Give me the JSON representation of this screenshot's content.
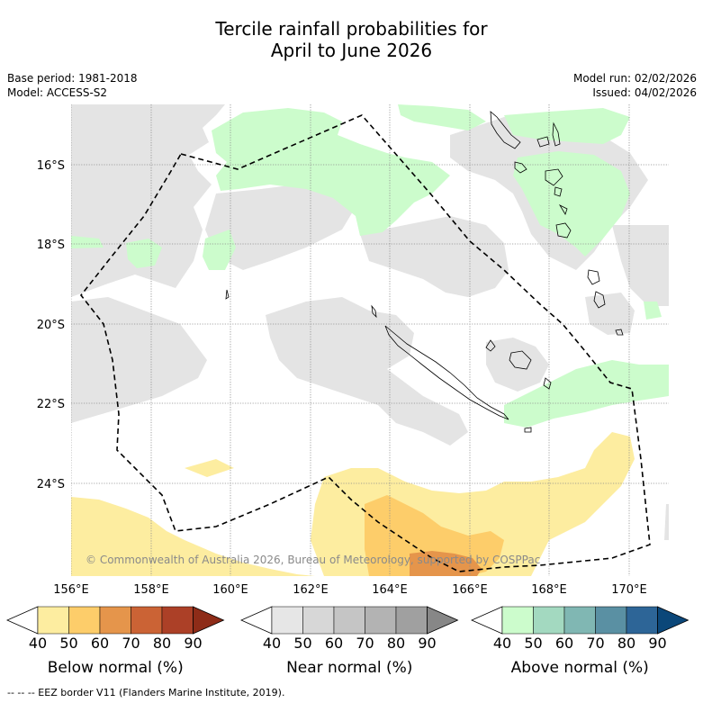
{
  "title_line1": "Tercile rainfall probabilities for",
  "title_line2": "April to June 2026",
  "base_period": "Base period: 1981-2018",
  "model": "Model: ACCESS-S2",
  "model_run": "Model run: 02/02/2026",
  "issued": "Issued: 04/02/2026",
  "lat_labels": [
    "16°S",
    "18°S",
    "20°S",
    "22°S",
    "24°S"
  ],
  "lon_labels": [
    "156°E",
    "158°E",
    "160°E",
    "162°E",
    "164°E",
    "166°E",
    "168°E",
    "170°E"
  ],
  "copyright": "© Commonwealth of Australia 2026, Bureau of Meteorology, supported by COSPPac",
  "colorbars": [
    {
      "label": "Below normal (%)",
      "ticks": [
        "40",
        "50",
        "60",
        "70",
        "80",
        "90"
      ],
      "colors": [
        "#ffffff",
        "#fdeda0",
        "#fdcd6a",
        "#e5954b",
        "#cb6335",
        "#ac4027",
        "#8e2c18"
      ]
    },
    {
      "label": "Near normal (%)",
      "ticks": [
        "40",
        "50",
        "60",
        "70",
        "80",
        "90"
      ],
      "colors": [
        "#ffffff",
        "#e6e6e6",
        "#d7d7d7",
        "#c5c5c5",
        "#b3b3b3",
        "#a0a0a0",
        "#878787"
      ]
    },
    {
      "label": "Above normal (%)",
      "ticks": [
        "40",
        "50",
        "60",
        "70",
        "80",
        "90"
      ],
      "colors": [
        "#ffffff",
        "#ccfccc",
        "#a3d9c0",
        "#80b7b3",
        "#5a90a3",
        "#2d6597",
        "#0b4779"
      ]
    }
  ],
  "footnote": "--  --  -- EEZ border V11 (Flanders Marine Institute, 2019).",
  "colors": {
    "grey": "#e4e4e4",
    "green": "#ccfccc",
    "yellow": "#fdeda0",
    "orange": "#fdcd6a",
    "dark_orange": "#e5954b"
  }
}
